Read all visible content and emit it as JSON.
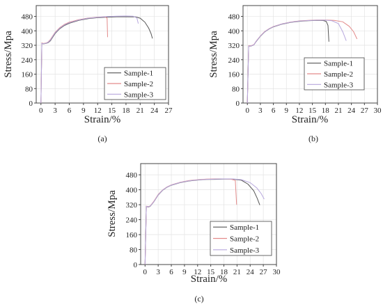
{
  "chart_data": [
    {
      "type": "line",
      "panel_label": "(a)",
      "xlabel": "Strain/%",
      "ylabel": "Stress/Mpa",
      "xlim": [
        -1,
        27
      ],
      "ylim": [
        0,
        540
      ],
      "xticks": [
        0,
        3,
        6,
        9,
        12,
        15,
        18,
        21,
        24,
        27
      ],
      "yticks": [
        0,
        80,
        160,
        240,
        320,
        400,
        480
      ],
      "grid": true,
      "legend_position": "bottom-right",
      "series": [
        {
          "name": "Sample-1",
          "color": "#555555",
          "x": [
            0,
            0.2,
            0.5,
            1.0,
            1.5,
            2.0,
            3.0,
            4.0,
            5.0,
            6.0,
            8.0,
            10.0,
            12.0,
            14.0,
            16.0,
            18.0,
            20.0,
            21.0,
            22.0,
            22.8,
            23.3,
            23.6
          ],
          "y": [
            0,
            330,
            328,
            330,
            334,
            345,
            385,
            412,
            430,
            442,
            458,
            468,
            473,
            476,
            478,
            478,
            477,
            470,
            448,
            415,
            385,
            358
          ]
        },
        {
          "name": "Sample-2",
          "color": "#e38a8a",
          "x": [
            0,
            0.2,
            0.5,
            1.0,
            1.5,
            2.0,
            3.0,
            4.0,
            5.0,
            6.0,
            8.0,
            10.0,
            12.0,
            13.5,
            14.0,
            14.1
          ],
          "y": [
            0,
            333,
            330,
            332,
            338,
            352,
            392,
            418,
            436,
            448,
            462,
            471,
            476,
            478,
            470,
            365
          ]
        },
        {
          "name": "Sample-3",
          "color": "#b7a7dd",
          "x": [
            0,
            0.2,
            0.5,
            1.0,
            1.5,
            2.0,
            3.0,
            4.0,
            5.0,
            6.0,
            8.0,
            10.0,
            12.0,
            14.0,
            16.0,
            18.0,
            19.5,
            20.3,
            20.6
          ],
          "y": [
            0,
            331,
            329,
            331,
            336,
            349,
            389,
            415,
            433,
            445,
            460,
            470,
            475,
            479,
            481,
            482,
            481,
            472,
            440
          ]
        }
      ]
    },
    {
      "type": "line",
      "panel_label": "(b)",
      "xlabel": "Strain/%",
      "ylabel": "Stress/Mpa",
      "xlim": [
        -1,
        30
      ],
      "ylim": [
        0,
        540
      ],
      "xticks": [
        0,
        3,
        6,
        9,
        12,
        15,
        18,
        21,
        24,
        27,
        30
      ],
      "yticks": [
        0,
        80,
        160,
        240,
        320,
        400,
        480
      ],
      "grid": true,
      "legend_position": "bottom-right",
      "series": [
        {
          "name": "Sample-1",
          "color": "#555555",
          "x": [
            0,
            0.3,
            0.8,
            1.5,
            2.0,
            3.0,
            4.0,
            5.0,
            6.0,
            8.0,
            10.0,
            12.0,
            14.0,
            16.0,
            17.5,
            18.2,
            18.6,
            18.8
          ],
          "y": [
            0,
            315,
            315,
            322,
            340,
            370,
            394,
            410,
            422,
            437,
            447,
            453,
            456,
            458,
            457,
            452,
            430,
            340
          ]
        },
        {
          "name": "Sample-2",
          "color": "#e38a8a",
          "x": [
            0,
            0.3,
            0.8,
            1.5,
            2.0,
            3.0,
            4.0,
            5.0,
            6.0,
            8.0,
            10.0,
            12.0,
            14.0,
            16.0,
            18.0,
            20.0,
            22.0,
            23.5,
            24.5,
            25.3
          ],
          "y": [
            0,
            318,
            317,
            324,
            342,
            372,
            396,
            412,
            424,
            439,
            449,
            455,
            458,
            460,
            460,
            458,
            450,
            425,
            395,
            355
          ]
        },
        {
          "name": "Sample-3",
          "color": "#b7a7dd",
          "x": [
            0,
            0.3,
            0.8,
            1.5,
            2.0,
            3.0,
            4.0,
            5.0,
            6.0,
            8.0,
            10.0,
            12.0,
            14.0,
            16.0,
            18.0,
            19.5,
            21.0,
            22.0,
            22.8
          ],
          "y": [
            0,
            316,
            316,
            323,
            341,
            371,
            395,
            411,
            423,
            438,
            448,
            454,
            457,
            459,
            459,
            456,
            440,
            395,
            345
          ]
        }
      ]
    },
    {
      "type": "line",
      "panel_label": "(c)",
      "xlabel": "Strain/%",
      "ylabel": "Stress/Mpa",
      "xlim": [
        -1,
        30
      ],
      "ylim": [
        0,
        540
      ],
      "xticks": [
        0,
        3,
        6,
        9,
        12,
        15,
        18,
        21,
        24,
        27,
        30
      ],
      "yticks": [
        0,
        80,
        160,
        240,
        320,
        400,
        480
      ],
      "grid": true,
      "legend_position": "bottom-right",
      "series": [
        {
          "name": "Sample-1",
          "color": "#555555",
          "x": [
            0,
            0.3,
            0.8,
            1.2,
            2.0,
            3.0,
            4.0,
            5.0,
            6.0,
            8.0,
            10.0,
            12.0,
            14.0,
            16.0,
            18.0,
            20.0,
            22.0,
            23.5,
            24.8,
            25.6,
            26.2
          ],
          "y": [
            0,
            310,
            308,
            312,
            335,
            372,
            397,
            413,
            424,
            438,
            447,
            452,
            455,
            456,
            457,
            457,
            451,
            430,
            395,
            355,
            318
          ]
        },
        {
          "name": "Sample-2",
          "color": "#e38a8a",
          "x": [
            0,
            0.3,
            0.8,
            1.2,
            2.0,
            3.0,
            4.0,
            5.0,
            6.0,
            8.0,
            10.0,
            12.0,
            14.0,
            16.0,
            18.0,
            19.5,
            20.6,
            20.9
          ],
          "y": [
            0,
            312,
            310,
            314,
            338,
            375,
            399,
            415,
            426,
            440,
            449,
            454,
            457,
            458,
            458,
            457,
            450,
            320
          ]
        },
        {
          "name": "Sample-3",
          "color": "#b7a7dd",
          "x": [
            0,
            0.3,
            0.8,
            1.2,
            2.0,
            3.0,
            4.0,
            5.0,
            6.0,
            8.0,
            10.0,
            12.0,
            14.0,
            16.0,
            18.0,
            20.0,
            22.0,
            24.0,
            25.5,
            26.5,
            27.2
          ],
          "y": [
            0,
            311,
            309,
            313,
            336,
            373,
            398,
            414,
            425,
            439,
            448,
            453,
            456,
            457,
            458,
            458,
            454,
            438,
            410,
            380,
            350
          ]
        }
      ]
    }
  ]
}
